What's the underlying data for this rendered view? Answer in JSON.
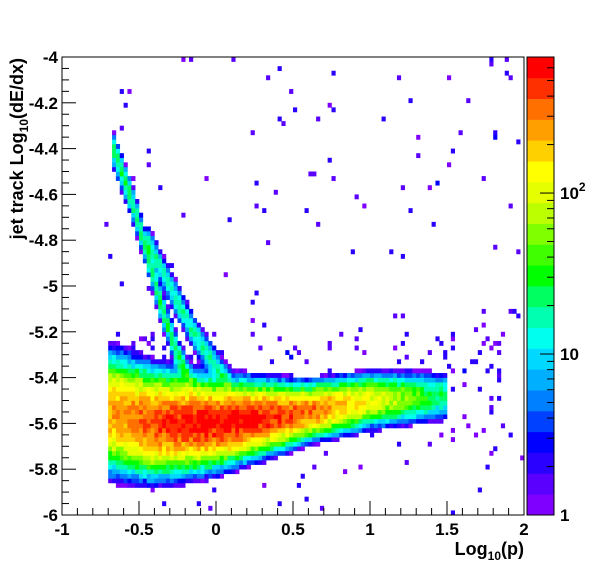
{
  "chart_data": {
    "type": "heatmap",
    "title": "",
    "xlabel": {
      "base": "Log",
      "sub": "10",
      "tail": "(p)"
    },
    "ylabel": {
      "pre": "jet track Log",
      "sub": "10",
      "tail": "(dE/dx)"
    },
    "xlim": [
      -1,
      2
    ],
    "ylim": [
      -6,
      -4
    ],
    "x_ticks": [
      -1,
      -0.5,
      0,
      0.5,
      1,
      1.5,
      2
    ],
    "x_tick_labels": [
      "-1",
      "-0.5",
      "0",
      "0.5",
      "1",
      "1.5",
      "2"
    ],
    "y_ticks": [
      -6,
      -5.8,
      -5.6,
      -5.4,
      -5.2,
      -5,
      -4.8,
      -4.6,
      -4.4,
      -4.2,
      -4
    ],
    "y_tick_labels": [
      "-6",
      "-5.8",
      "-5.6",
      "-5.4",
      "-5.2",
      "-5",
      "-4.8",
      "-4.6",
      "-4.4",
      "-4.2",
      "-4"
    ],
    "colorbar": {
      "scale": "log",
      "range": [
        1,
        700
      ],
      "labels": [
        {
          "value": 1,
          "base": "1",
          "exp": ""
        },
        {
          "value": 10,
          "base": "10",
          "exp": ""
        },
        {
          "value": 100,
          "base": "10",
          "exp": "2"
        }
      ],
      "palette": [
        "#8000ff",
        "#5a00ff",
        "#2a00ff",
        "#0000ff",
        "#0040ff",
        "#0080ff",
        "#00b0ff",
        "#00d8ff",
        "#00ffee",
        "#00ffb0",
        "#00ff60",
        "#00ff00",
        "#40ff00",
        "#80ff00",
        "#bbff00",
        "#e6ff00",
        "#ffff00",
        "#ffd000",
        "#ffa000",
        "#ff7000",
        "#ff3000",
        "#ff0000"
      ]
    },
    "bins": {
      "nx": 120,
      "ny": 100
    },
    "bands": [
      {
        "name": "main",
        "points": [
          [
            -0.7,
            -5.55
          ],
          [
            -0.4,
            -5.6
          ],
          [
            0,
            -5.6
          ],
          [
            0.5,
            -5.56
          ],
          [
            1,
            -5.5
          ],
          [
            1.5,
            -5.48
          ]
        ],
        "width": 0.06,
        "peak": 600
      },
      {
        "name": "upper-band",
        "points": [
          [
            -0.68,
            -4.38
          ],
          [
            -0.55,
            -4.62
          ],
          [
            -0.45,
            -4.85
          ],
          [
            -0.35,
            -5.1
          ],
          [
            -0.25,
            -5.3
          ],
          [
            -0.15,
            -5.45
          ]
        ],
        "width": 0.035,
        "peak": 25
      },
      {
        "name": "lower-band",
        "points": [
          [
            -0.45,
            -4.8
          ],
          [
            -0.3,
            -5.0
          ],
          [
            -0.15,
            -5.2
          ],
          [
            0,
            -5.35
          ],
          [
            0.1,
            -5.45
          ]
        ],
        "width": 0.035,
        "peak": 18
      }
    ]
  }
}
